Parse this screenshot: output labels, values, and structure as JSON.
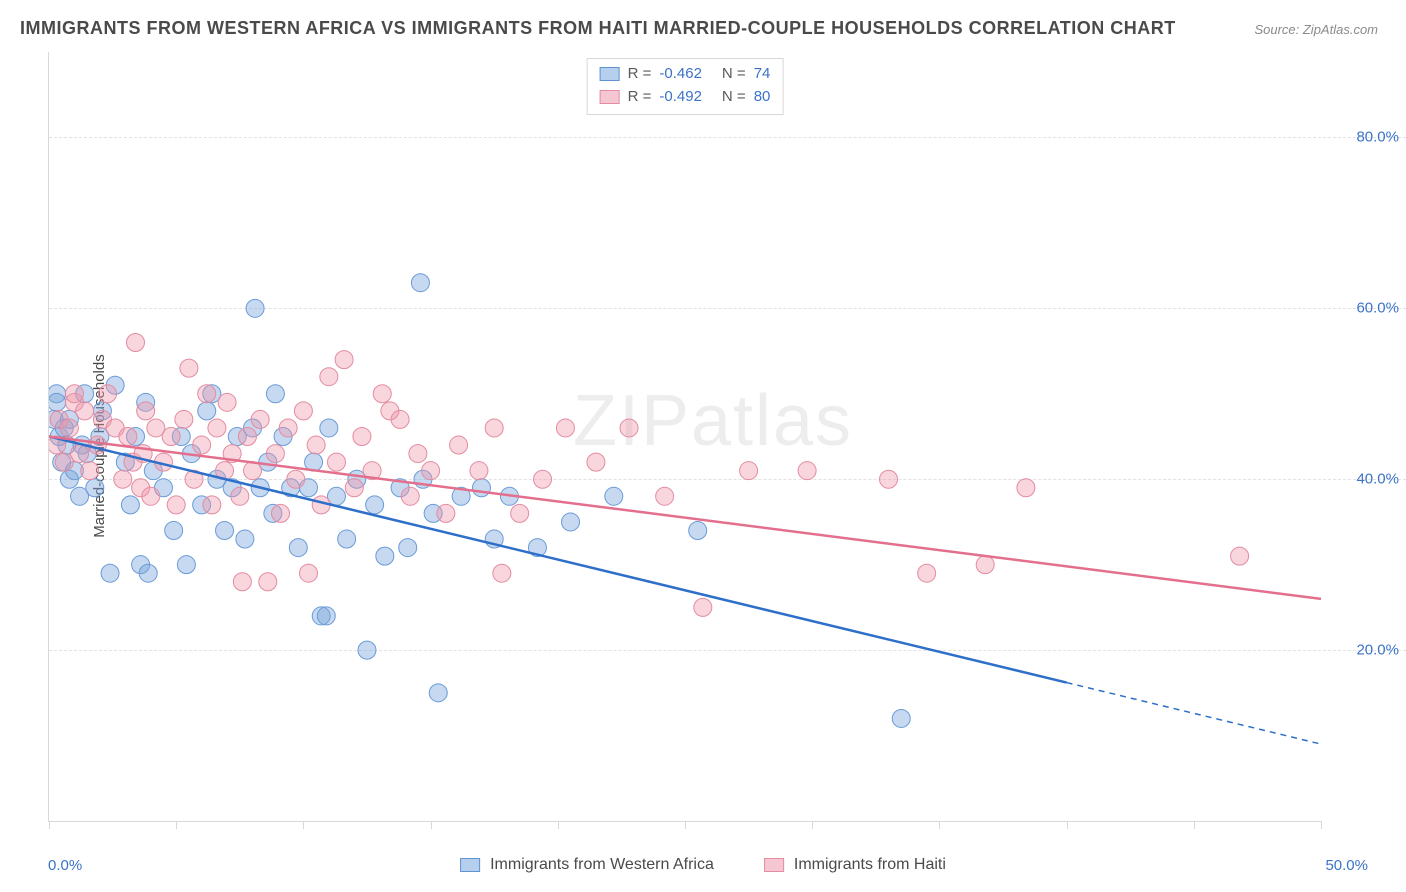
{
  "title": "IMMIGRANTS FROM WESTERN AFRICA VS IMMIGRANTS FROM HAITI MARRIED-COUPLE HOUSEHOLDS CORRELATION CHART",
  "source": "Source: ZipAtlas.com",
  "y_axis_label": "Married-couple Households",
  "watermark": "ZIPatlas",
  "chart": {
    "type": "scatter-with-regression",
    "background_color": "#ffffff",
    "grid_color": "#e2e2e2",
    "axis_color": "#d8d8d8",
    "tick_label_color": "#3b73c8",
    "tick_fontsize": 15,
    "xlim": [
      0,
      50
    ],
    "ylim": [
      0,
      90
    ],
    "x_ticks": [
      0,
      5,
      10,
      15,
      20,
      25,
      30,
      35,
      40,
      45,
      50
    ],
    "x_tick_labels": {
      "0": "0.0%",
      "50": "50.0%"
    },
    "y_ticks": [
      20,
      40,
      60,
      80
    ],
    "y_tick_labels": {
      "20": "20.0%",
      "40": "40.0%",
      "60": "60.0%",
      "80": "80.0%"
    },
    "series": [
      {
        "name": "Immigrants from Western Africa",
        "color_fill": "rgba(120,165,220,0.42)",
        "color_stroke": "#6a9bd8",
        "swatch_fill": "#b6cfec",
        "swatch_border": "#5f93d4",
        "marker_radius": 9,
        "R": "-0.462",
        "N": "74",
        "regression": {
          "line_color": "#2e6fc9",
          "line_width": 2.5,
          "solid_from_x": 0,
          "solid_to_x": 40,
          "dash_from_x": 40,
          "dash_to_x": 50,
          "y_at_x0": 45,
          "y_at_x50": 9
        },
        "points": [
          [
            0.2,
            47
          ],
          [
            0.3,
            50
          ],
          [
            0.4,
            45
          ],
          [
            0.5,
            42
          ],
          [
            0.6,
            46
          ],
          [
            0.7,
            44
          ],
          [
            0.8,
            40
          ],
          [
            1.0,
            41
          ],
          [
            0.8,
            47
          ],
          [
            1.2,
            38
          ],
          [
            1.3,
            44
          ],
          [
            1.4,
            50
          ],
          [
            1.5,
            43
          ],
          [
            1.8,
            39
          ],
          [
            2.0,
            45
          ],
          [
            2.1,
            48
          ],
          [
            2.4,
            29
          ],
          [
            2.6,
            51
          ],
          [
            3.0,
            42
          ],
          [
            3.2,
            37
          ],
          [
            3.4,
            45
          ],
          [
            3.6,
            30
          ],
          [
            3.8,
            49
          ],
          [
            4.1,
            41
          ],
          [
            3.9,
            29
          ],
          [
            4.5,
            39
          ],
          [
            4.9,
            34
          ],
          [
            5.2,
            45
          ],
          [
            5.4,
            30
          ],
          [
            5.6,
            43
          ],
          [
            6.0,
            37
          ],
          [
            6.2,
            48
          ],
          [
            6.4,
            50
          ],
          [
            6.6,
            40
          ],
          [
            6.9,
            34
          ],
          [
            7.2,
            39
          ],
          [
            7.4,
            45
          ],
          [
            7.7,
            33
          ],
          [
            8.0,
            46
          ],
          [
            8.1,
            60
          ],
          [
            8.3,
            39
          ],
          [
            8.6,
            42
          ],
          [
            8.9,
            50
          ],
          [
            8.8,
            36
          ],
          [
            9.2,
            45
          ],
          [
            9.5,
            39
          ],
          [
            9.8,
            32
          ],
          [
            10.2,
            39
          ],
          [
            10.4,
            42
          ],
          [
            10.7,
            24
          ],
          [
            11.0,
            46
          ],
          [
            11.3,
            38
          ],
          [
            10.9,
            24
          ],
          [
            11.7,
            33
          ],
          [
            12.1,
            40
          ],
          [
            12.5,
            20
          ],
          [
            12.8,
            37
          ],
          [
            13.2,
            31
          ],
          [
            13.8,
            39
          ],
          [
            14.1,
            32
          ],
          [
            14.6,
            63
          ],
          [
            14.7,
            40
          ],
          [
            15.1,
            36
          ],
          [
            15.3,
            15
          ],
          [
            16.2,
            38
          ],
          [
            17.0,
            39
          ],
          [
            17.5,
            33
          ],
          [
            18.1,
            38
          ],
          [
            19.2,
            32
          ],
          [
            20.5,
            35
          ],
          [
            22.2,
            38
          ],
          [
            25.5,
            34
          ],
          [
            33.5,
            12
          ],
          [
            0.3,
            49
          ]
        ]
      },
      {
        "name": "Immigrants from Haiti",
        "color_fill": "rgba(240,150,170,0.40)",
        "color_stroke": "#e38ca0",
        "swatch_fill": "#f5c7d2",
        "swatch_border": "#e68ba0",
        "marker_radius": 9,
        "R": "-0.492",
        "N": "80",
        "regression": {
          "line_color": "#e36f8c",
          "line_width": 2.5,
          "solid_from_x": 0,
          "solid_to_x": 50,
          "dash_from_x": 50,
          "dash_to_x": 50,
          "y_at_x0": 45,
          "y_at_x50": 26
        },
        "points": [
          [
            0.3,
            44
          ],
          [
            0.4,
            47
          ],
          [
            0.6,
            42
          ],
          [
            0.8,
            46
          ],
          [
            1.0,
            49
          ],
          [
            1.2,
            43
          ],
          [
            1.4,
            48
          ],
          [
            1.6,
            41
          ],
          [
            1.9,
            44
          ],
          [
            2.1,
            47
          ],
          [
            2.3,
            50
          ],
          [
            2.6,
            46
          ],
          [
            2.9,
            40
          ],
          [
            3.1,
            45
          ],
          [
            3.3,
            42
          ],
          [
            3.4,
            56
          ],
          [
            3.6,
            39
          ],
          [
            3.8,
            48
          ],
          [
            3.7,
            43
          ],
          [
            4.0,
            38
          ],
          [
            4.2,
            46
          ],
          [
            4.5,
            42
          ],
          [
            4.8,
            45
          ],
          [
            5.0,
            37
          ],
          [
            5.3,
            47
          ],
          [
            5.5,
            53
          ],
          [
            5.7,
            40
          ],
          [
            6.0,
            44
          ],
          [
            6.2,
            50
          ],
          [
            6.4,
            37
          ],
          [
            6.6,
            46
          ],
          [
            6.9,
            41
          ],
          [
            7.0,
            49
          ],
          [
            7.2,
            43
          ],
          [
            7.5,
            38
          ],
          [
            7.8,
            45
          ],
          [
            7.6,
            28
          ],
          [
            8.0,
            41
          ],
          [
            8.3,
            47
          ],
          [
            8.6,
            28
          ],
          [
            8.9,
            43
          ],
          [
            9.1,
            36
          ],
          [
            9.4,
            46
          ],
          [
            9.7,
            40
          ],
          [
            10.0,
            48
          ],
          [
            10.2,
            29
          ],
          [
            10.5,
            44
          ],
          [
            10.7,
            37
          ],
          [
            11.0,
            52
          ],
          [
            11.3,
            42
          ],
          [
            11.6,
            54
          ],
          [
            12.0,
            39
          ],
          [
            12.3,
            45
          ],
          [
            12.7,
            41
          ],
          [
            13.1,
            50
          ],
          [
            13.4,
            48
          ],
          [
            13.8,
            47
          ],
          [
            14.2,
            38
          ],
          [
            14.5,
            43
          ],
          [
            15.0,
            41
          ],
          [
            15.6,
            36
          ],
          [
            16.1,
            44
          ],
          [
            16.9,
            41
          ],
          [
            17.5,
            46
          ],
          [
            17.8,
            29
          ],
          [
            18.5,
            36
          ],
          [
            19.4,
            40
          ],
          [
            20.3,
            46
          ],
          [
            21.5,
            42
          ],
          [
            22.8,
            46
          ],
          [
            24.2,
            38
          ],
          [
            25.7,
            25
          ],
          [
            27.5,
            41
          ],
          [
            29.8,
            41
          ],
          [
            33.0,
            40
          ],
          [
            34.5,
            29
          ],
          [
            36.8,
            30
          ],
          [
            38.4,
            39
          ],
          [
            46.8,
            31
          ],
          [
            1.0,
            50
          ]
        ]
      }
    ]
  },
  "legend_bottom": [
    {
      "label": "Immigrants from Western Africa",
      "swatch_fill": "#b6cfec",
      "swatch_border": "#5f93d4"
    },
    {
      "label": "Immigrants from Haiti",
      "swatch_fill": "#f5c7d2",
      "swatch_border": "#e68ba0"
    }
  ]
}
